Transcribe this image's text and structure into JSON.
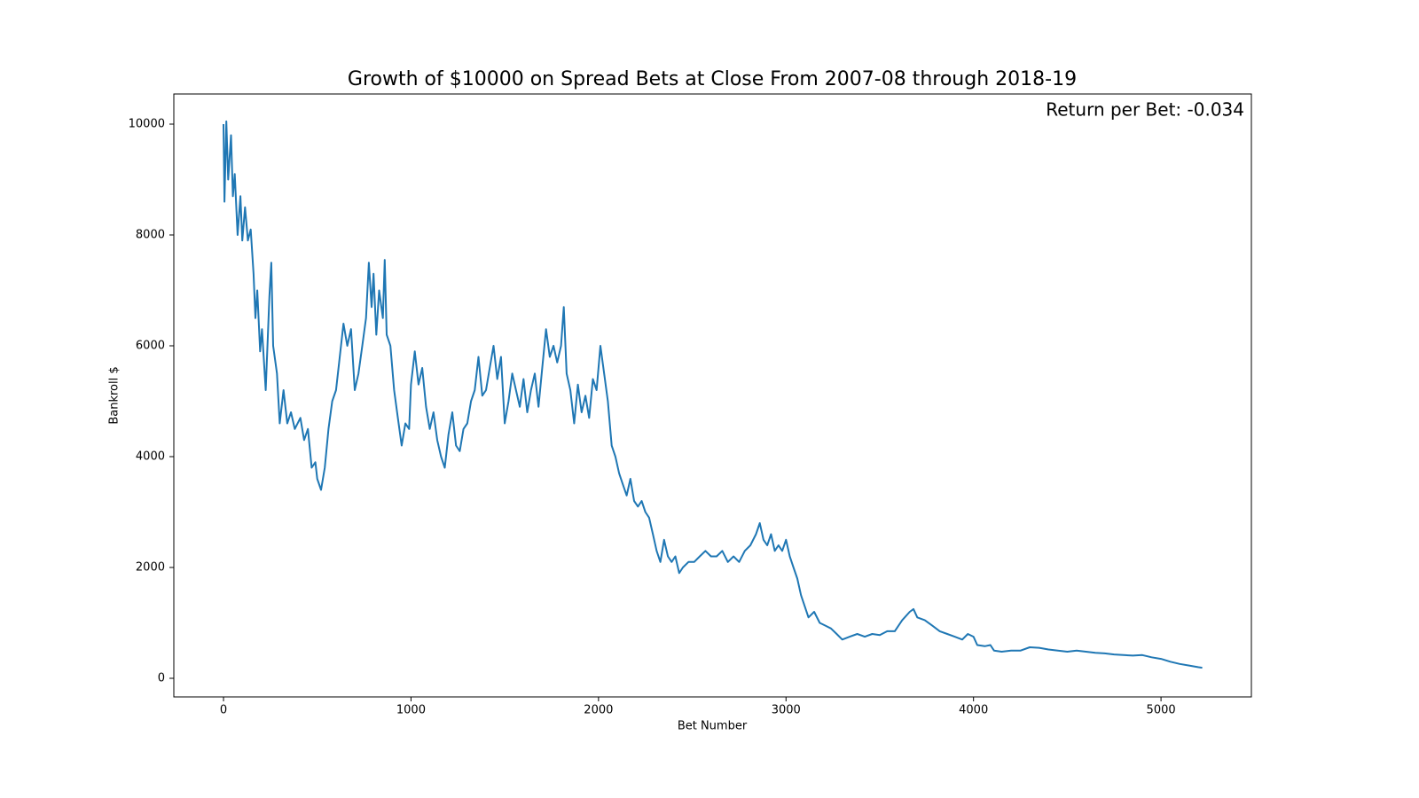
{
  "chart_data": {
    "type": "line",
    "title": "Growth of $10000 on Spread Bets at Close From 2007-08 through 2018-19",
    "annotation": "Return per Bet: -0.034",
    "xlabel": "Bet Number",
    "ylabel": "Bankroll $",
    "color": "#1f77b4",
    "x": [
      0,
      5,
      15,
      25,
      40,
      50,
      60,
      75,
      90,
      100,
      115,
      130,
      145,
      160,
      170,
      180,
      195,
      205,
      225,
      245,
      255,
      265,
      285,
      300,
      320,
      340,
      360,
      380,
      410,
      430,
      450,
      470,
      490,
      500,
      520,
      540,
      560,
      580,
      600,
      620,
      640,
      660,
      680,
      700,
      720,
      740,
      760,
      775,
      790,
      800,
      815,
      830,
      850,
      860,
      870,
      890,
      910,
      930,
      950,
      970,
      990,
      1000,
      1020,
      1040,
      1060,
      1080,
      1100,
      1120,
      1140,
      1160,
      1180,
      1200,
      1220,
      1240,
      1260,
      1280,
      1300,
      1320,
      1340,
      1360,
      1380,
      1400,
      1420,
      1440,
      1460,
      1480,
      1500,
      1520,
      1540,
      1560,
      1580,
      1600,
      1620,
      1640,
      1660,
      1680,
      1700,
      1720,
      1740,
      1760,
      1780,
      1800,
      1815,
      1830,
      1850,
      1870,
      1890,
      1910,
      1930,
      1950,
      1970,
      1990,
      2010,
      2030,
      2050,
      2070,
      2090,
      2110,
      2130,
      2150,
      2170,
      2190,
      2210,
      2230,
      2250,
      2270,
      2290,
      2310,
      2330,
      2350,
      2370,
      2390,
      2410,
      2430,
      2450,
      2480,
      2510,
      2540,
      2570,
      2600,
      2630,
      2660,
      2690,
      2720,
      2750,
      2780,
      2810,
      2840,
      2860,
      2880,
      2900,
      2920,
      2940,
      2960,
      2980,
      3000,
      3020,
      3040,
      3060,
      3080,
      3100,
      3120,
      3150,
      3180,
      3210,
      3240,
      3270,
      3300,
      3340,
      3380,
      3420,
      3460,
      3500,
      3540,
      3580,
      3620,
      3660,
      3680,
      3700,
      3740,
      3780,
      3820,
      3860,
      3900,
      3940,
      3970,
      4000,
      4020,
      4060,
      4090,
      4110,
      4150,
      4200,
      4250,
      4300,
      4350,
      4400,
      4450,
      4500,
      4550,
      4600,
      4650,
      4700,
      4750,
      4800,
      4850,
      4900,
      4950,
      5000,
      5050,
      5100,
      5150,
      5200,
      5220
    ],
    "values": [
      10000,
      8600,
      10050,
      9000,
      9800,
      8700,
      9100,
      8000,
      8700,
      7900,
      8500,
      7900,
      8100,
      7300,
      6500,
      7000,
      5900,
      6300,
      5200,
      6900,
      7500,
      6000,
      5500,
      4600,
      5200,
      4600,
      4800,
      4500,
      4700,
      4300,
      4500,
      3800,
      3900,
      3600,
      3400,
      3800,
      4500,
      5000,
      5200,
      5800,
      6400,
      6000,
      6300,
      5200,
      5500,
      6000,
      6500,
      7500,
      6700,
      7300,
      6200,
      7000,
      6500,
      7550,
      6200,
      6000,
      5200,
      4700,
      4200,
      4600,
      4500,
      5300,
      5900,
      5300,
      5600,
      4900,
      4500,
      4800,
      4300,
      4000,
      3800,
      4400,
      4800,
      4200,
      4100,
      4500,
      4600,
      5000,
      5200,
      5800,
      5100,
      5200,
      5600,
      6000,
      5400,
      5800,
      4600,
      5000,
      5500,
      5200,
      4900,
      5400,
      4800,
      5200,
      5500,
      4900,
      5600,
      6300,
      5800,
      6000,
      5700,
      6000,
      6700,
      5500,
      5200,
      4600,
      5300,
      4800,
      5100,
      4700,
      5400,
      5200,
      6000,
      5500,
      5000,
      4200,
      4000,
      3700,
      3500,
      3300,
      3600,
      3200,
      3100,
      3200,
      3000,
      2900,
      2600,
      2300,
      2100,
      2500,
      2200,
      2100,
      2200,
      1900,
      2000,
      2100,
      2100,
      2200,
      2300,
      2200,
      2200,
      2300,
      2100,
      2200,
      2100,
      2300,
      2400,
      2600,
      2800,
      2500,
      2400,
      2600,
      2300,
      2400,
      2300,
      2500,
      2200,
      2000,
      1800,
      1500,
      1300,
      1100,
      1200,
      1000,
      950,
      900,
      800,
      700,
      750,
      800,
      750,
      800,
      780,
      850,
      850,
      1050,
      1200,
      1250,
      1100,
      1050,
      950,
      850,
      800,
      750,
      700,
      800,
      750,
      600,
      580,
      600,
      500,
      480,
      500,
      500,
      560,
      550,
      520,
      500,
      480,
      500,
      480,
      460,
      450,
      430,
      420,
      410,
      420,
      380,
      350,
      300,
      260,
      230,
      200,
      190
    ],
    "xlim": [
      -265,
      5482
    ],
    "ylim": [
      -336,
      10544
    ],
    "xticks": [
      0,
      1000,
      2000,
      3000,
      4000,
      5000
    ],
    "yticks": [
      0,
      2000,
      4000,
      6000,
      8000,
      10000
    ]
  }
}
